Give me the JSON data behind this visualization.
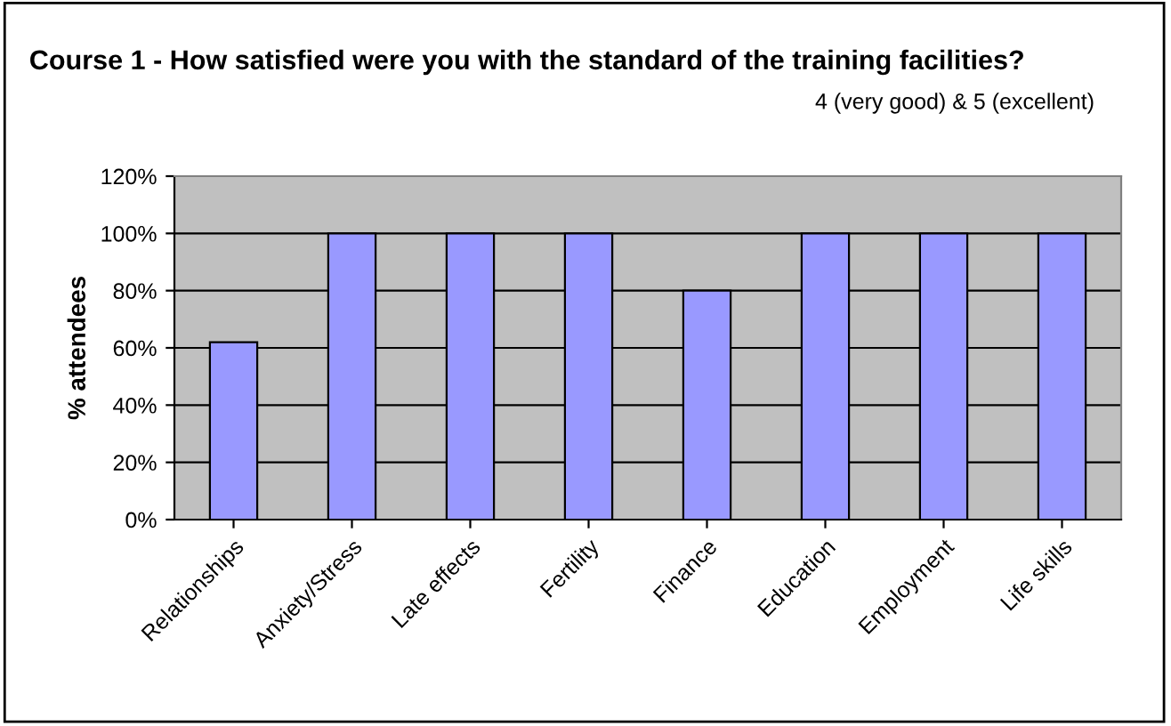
{
  "chart_data": {
    "type": "bar",
    "title": "Course 1 - How satisfied were you with the standard of the training facilities?",
    "annotations": [
      "4 (very good) & 5 (excellent)"
    ],
    "ylabel": "% attendees",
    "categories": [
      "Relationships",
      "Anxiety/Stress",
      "Late effects",
      "Fertility",
      "Finance",
      "Education",
      "Employment",
      "Life skills"
    ],
    "values": [
      62,
      100,
      100,
      100,
      80,
      100,
      100,
      100
    ],
    "color": "#9999ff",
    "ylim": [
      0,
      120
    ],
    "yticks": [
      {
        "value": 0,
        "label": "0%"
      },
      {
        "value": 20,
        "label": "20%"
      },
      {
        "value": 40,
        "label": "40%"
      },
      {
        "value": 60,
        "label": "60%"
      },
      {
        "value": 80,
        "label": "80%"
      },
      {
        "value": 100,
        "label": "100%"
      },
      {
        "value": 120,
        "label": "120%"
      }
    ],
    "grid": "y",
    "legend": false
  }
}
